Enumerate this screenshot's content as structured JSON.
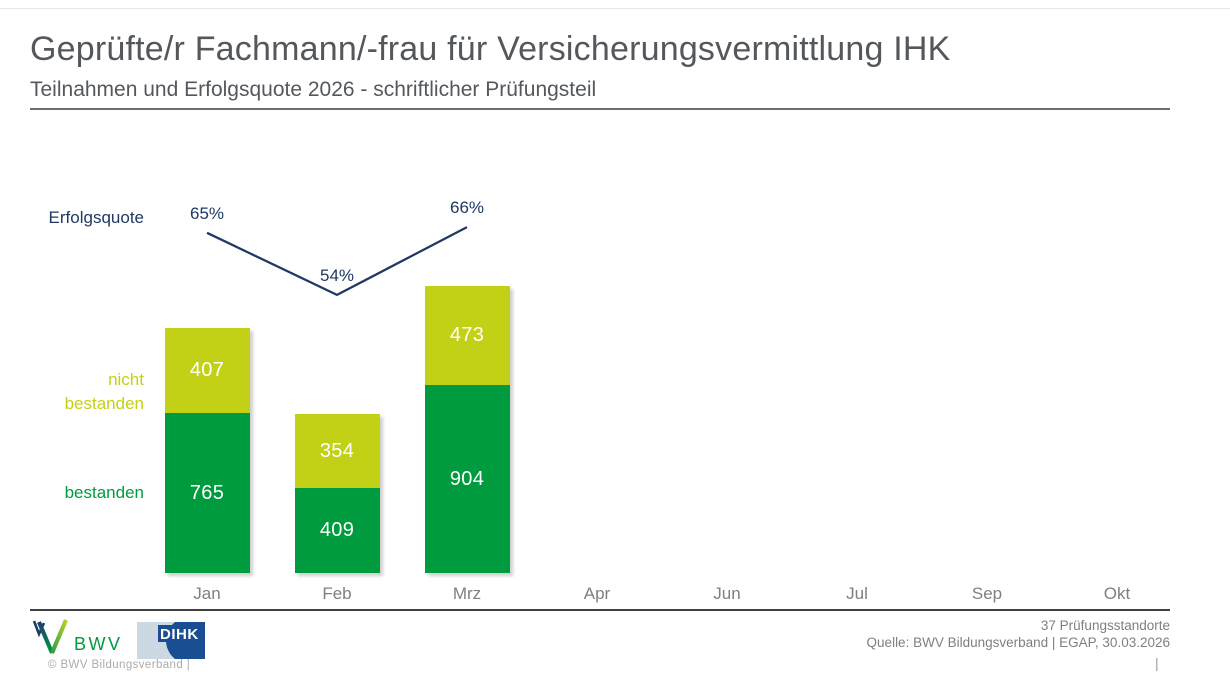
{
  "header": {
    "title": "Geprüfte/r Fachmann/-frau für Versicherungsvermittlung IHK",
    "subtitle": "Teilnahmen und Erfolgsquote 2026 - schriftlicher Prüfungsteil"
  },
  "chart_data": {
    "type": "bar",
    "stacked": true,
    "title": "Teilnahmen und Erfolgsquote 2026 - schriftlicher Prüfungsteil",
    "categories": [
      "Jan",
      "Feb",
      "Mrz",
      "Apr",
      "Jun",
      "Jul",
      "Sep",
      "Okt"
    ],
    "series": [
      {
        "name": "bestanden",
        "color": "#009b3e",
        "values": [
          765,
          409,
          904,
          null,
          null,
          null,
          null,
          null
        ]
      },
      {
        "name": "nicht bestanden",
        "color": "#c3d116",
        "values": [
          407,
          354,
          473,
          null,
          null,
          null,
          null,
          null
        ]
      }
    ],
    "line": {
      "name": "Erfolgsquote",
      "color": "#1f3864",
      "unit": "%",
      "values": [
        65,
        54,
        66,
        null,
        null,
        null,
        null,
        null
      ]
    },
    "xlabel": "",
    "ylabel": "",
    "grid": false,
    "legend_position": "left",
    "value_labels": "inside-white"
  },
  "chart_labels": {
    "erfolgsquote": "Erfolgsquote",
    "nicht_bestanden": [
      "nicht",
      "bestanden"
    ],
    "bestanden": "bestanden"
  },
  "footer": {
    "locations": "37 Prüfungsstandorte",
    "source": "Quelle: BWV Bildungsverband | EGAP, 30.03.2026",
    "copyright": "©  BWV Bildungsverband  |",
    "pipe": "|",
    "bwv_logo_text": "BWV",
    "dihk_logo_text": "DIHK"
  },
  "colors": {
    "green": "#009b3e",
    "yellow_green": "#c3d116",
    "navy": "#1f3864",
    "title_gray": "#54585c",
    "axis_gray": "#7f7f7f"
  }
}
